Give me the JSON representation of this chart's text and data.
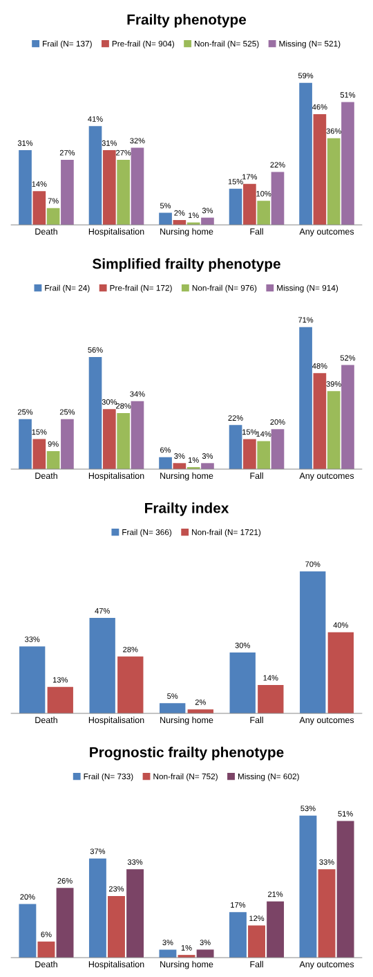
{
  "chart_data": [
    {
      "type": "bar",
      "title": "Frailty phenotype",
      "categories": [
        "Death",
        "Hospitalisation",
        "Nursing home",
        "Fall",
        "Any outcomes"
      ],
      "legend": "top",
      "series": [
        {
          "name": "Frail (N= 137)",
          "color": "#4f81bd",
          "values": [
            31,
            41,
            5,
            15,
            59
          ],
          "value_labels": [
            "31%",
            "41%",
            "5%",
            "15%",
            "59%"
          ]
        },
        {
          "name": "Pre-frail (N= 904)",
          "color": "#c0504d",
          "values": [
            14,
            31,
            2,
            17,
            46
          ],
          "value_labels": [
            "14%",
            "31%",
            "2%",
            "17%",
            "46%"
          ]
        },
        {
          "name": "Non-frail (N= 525)",
          "color": "#9bbb59",
          "values": [
            7,
            27,
            1,
            10,
            36
          ],
          "value_labels": [
            "7%",
            "27%",
            "1%",
            "10%",
            "36%"
          ]
        },
        {
          "name": "Missing (N= 521)",
          "color": "#9a6fa3",
          "values": [
            27,
            32,
            3,
            22,
            51
          ],
          "value_labels": [
            "27%",
            "32%",
            "3%",
            "22%",
            "51%"
          ]
        }
      ]
    },
    {
      "type": "bar",
      "title": "Simplified frailty phenotype",
      "categories": [
        "Death",
        "Hospitalisation",
        "Nursing home",
        "Fall",
        "Any outcomes"
      ],
      "legend": "top",
      "series": [
        {
          "name": "Frail (N= 24)",
          "color": "#4f81bd",
          "values": [
            25,
            56,
            6,
            22,
            71
          ],
          "value_labels": [
            "25%",
            "56%",
            "6%",
            "22%",
            "71%"
          ]
        },
        {
          "name": "Pre-frail (N= 172)",
          "color": "#c0504d",
          "values": [
            15,
            30,
            3,
            15,
            48
          ],
          "value_labels": [
            "15%",
            "30%",
            "3%",
            "15%",
            "48%"
          ]
        },
        {
          "name": "Non-frail (N= 976)",
          "color": "#9bbb59",
          "values": [
            9,
            28,
            1,
            14,
            39
          ],
          "value_labels": [
            "9%",
            "28%",
            "1%",
            "14%",
            "39%"
          ]
        },
        {
          "name": "Missing (N= 914)",
          "color": "#9a6fa3",
          "values": [
            25,
            34,
            3,
            20,
            52
          ],
          "value_labels": [
            "25%",
            "34%",
            "3%",
            "20%",
            "52%"
          ]
        }
      ]
    },
    {
      "type": "bar",
      "title": "Frailty index",
      "categories": [
        "Death",
        "Hospitalisation",
        "Nursing home",
        "Fall",
        "Any outcomes"
      ],
      "legend": "top",
      "series": [
        {
          "name": "Frail (N= 366)",
          "color": "#4f81bd",
          "values": [
            33,
            47,
            5,
            30,
            70
          ],
          "value_labels": [
            "33%",
            "47%",
            "5%",
            "30%",
            "70%"
          ]
        },
        {
          "name": "Non-frail (N= 1721)",
          "color": "#c0504d",
          "values": [
            13,
            28,
            2,
            14,
            40
          ],
          "value_labels": [
            "13%",
            "28%",
            "2%",
            "14%",
            "40%"
          ]
        }
      ]
    },
    {
      "type": "bar",
      "title": "Prognostic frailty phenotype",
      "categories": [
        "Death",
        "Hospitalisation",
        "Nursing home",
        "Fall",
        "Any outcomes"
      ],
      "legend": "top",
      "series": [
        {
          "name": "Frail (N= 733)",
          "color": "#4f81bd",
          "values": [
            20,
            37,
            3,
            17,
            53
          ],
          "value_labels": [
            "20%",
            "37%",
            "3%",
            "17%",
            "53%"
          ]
        },
        {
          "name": "Non-frail (N= 752)",
          "color": "#c0504d",
          "values": [
            6,
            23,
            1,
            12,
            33
          ],
          "value_labels": [
            "6%",
            "23%",
            "1%",
            "12%",
            "33%"
          ]
        },
        {
          "name": "Missing (N= 602)",
          "color": "#7b4466",
          "values": [
            26,
            33,
            3,
            21,
            51
          ],
          "value_labels": [
            "26%",
            "33%",
            "3%",
            "21%",
            "51%"
          ]
        }
      ]
    }
  ]
}
